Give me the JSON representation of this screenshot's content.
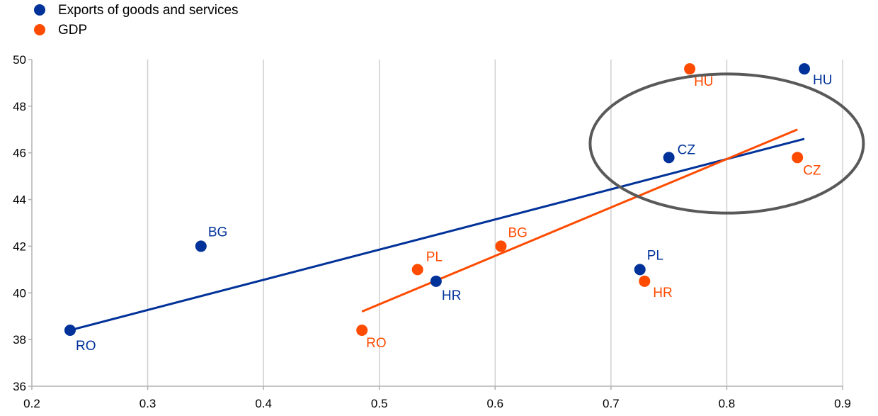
{
  "chart_data": {
    "type": "scatter",
    "xlim": [
      0.2,
      0.9
    ],
    "ylim": [
      36,
      50
    ],
    "x_ticks": [
      0.2,
      0.3,
      0.4,
      0.5,
      0.6,
      0.7,
      0.8,
      0.9
    ],
    "y_ticks": [
      36,
      38,
      40,
      42,
      44,
      46,
      48,
      50
    ],
    "x_tick_labels": [
      "0.2",
      "0.3",
      "0.4",
      "0.5",
      "0.6",
      "0.7",
      "0.8",
      "0.9"
    ],
    "y_tick_labels": [
      "36",
      "38",
      "40",
      "42",
      "44",
      "46",
      "48",
      "50"
    ],
    "grid": "vertical",
    "legend_position": "top-left",
    "series": [
      {
        "name": "Exports of goods and services",
        "color": "#003299",
        "points": [
          {
            "label": "RO",
            "x": 0.233,
            "y": 38.4
          },
          {
            "label": "BG",
            "x": 0.346,
            "y": 42.0
          },
          {
            "label": "HR",
            "x": 0.549,
            "y": 40.5
          },
          {
            "label": "PL",
            "x": 0.725,
            "y": 41.0
          },
          {
            "label": "CZ",
            "x": 0.75,
            "y": 45.8
          },
          {
            "label": "HU",
            "x": 0.867,
            "y": 49.6
          }
        ],
        "trendline": {
          "x": [
            0.233,
            0.867
          ],
          "y": [
            38.4,
            46.6
          ]
        }
      },
      {
        "name": "GDP",
        "color": "#FF4B00",
        "points": [
          {
            "label": "RO",
            "x": 0.485,
            "y": 38.4
          },
          {
            "label": "PL",
            "x": 0.533,
            "y": 41.0
          },
          {
            "label": "BG",
            "x": 0.605,
            "y": 42.0
          },
          {
            "label": "HR",
            "x": 0.729,
            "y": 40.5
          },
          {
            "label": "HU",
            "x": 0.768,
            "y": 49.6
          },
          {
            "label": "CZ",
            "x": 0.861,
            "y": 45.8
          }
        ],
        "trendline": {
          "x": [
            0.485,
            0.861
          ],
          "y": [
            39.2,
            47.0
          ]
        }
      }
    ],
    "highlight_ellipse": {
      "cx": 0.8,
      "cy": 46.4,
      "rx": 0.118,
      "ry": 2.98,
      "color": "#595959"
    }
  }
}
